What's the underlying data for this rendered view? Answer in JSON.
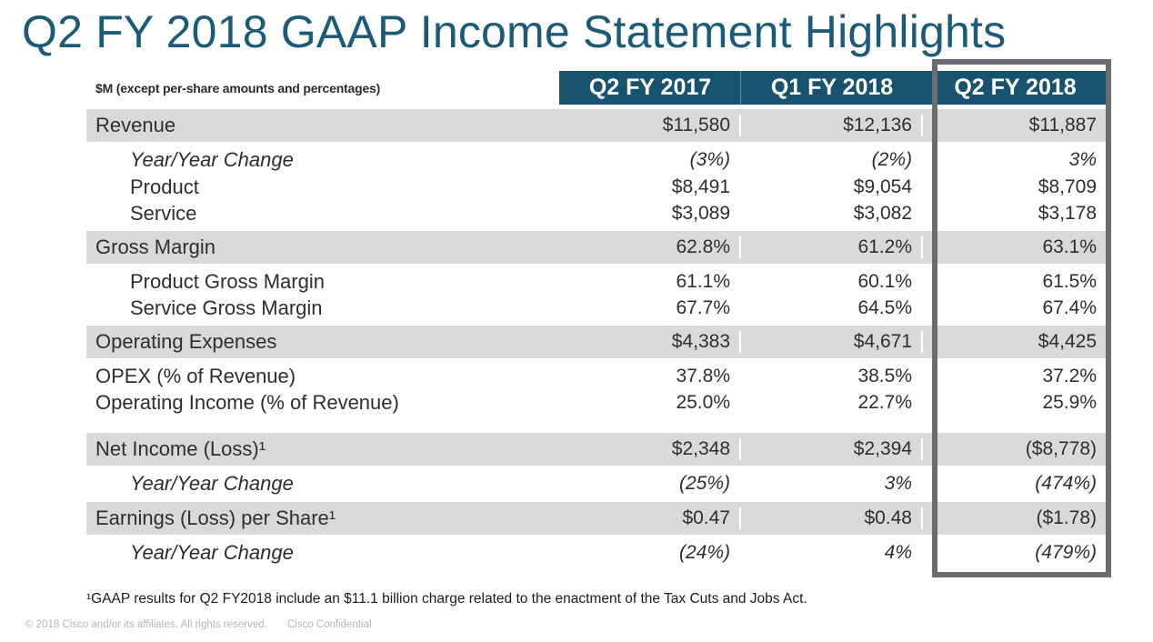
{
  "slide": {
    "title": "Q2 FY 2018 GAAP Income Statement Highlights",
    "footnote": "¹GAAP results for Q2 FY2018 include an $11.1 billion charge related to the enactment of the Tax Cuts and Jobs Act.",
    "copyright": "© 2018 Cisco and/or its affiliates. All rights reserved.",
    "confidential": "Cisco Confidential"
  },
  "colors": {
    "title_teal": "#1b5b78",
    "header_teal": "#17536f",
    "band_gray": "#d9d9d9",
    "highlight_border_gray": "#6b6d70",
    "body_text": "#2e2e2e",
    "copyright_gray": "#b3b5b7"
  },
  "table": {
    "unit_label": "$M (except per-share amounts and percentages)",
    "columns": [
      "Q2 FY 2017",
      "Q1 FY 2018",
      "Q2 FY 2018"
    ],
    "highlighted_column": "Q2 FY 2018",
    "rows": [
      {
        "label": "Revenue",
        "style": "major",
        "values": [
          "$11,580",
          "$12,136",
          "$11,887"
        ]
      },
      {
        "label": "Year/Year Change",
        "style": "yy",
        "values": [
          "(3%)",
          "(2%)",
          "3%"
        ]
      },
      {
        "label": "Product",
        "style": "indent",
        "values": [
          "$8,491",
          "$9,054",
          "$8,709"
        ]
      },
      {
        "label": "Service",
        "style": "indent",
        "values": [
          "$3,089",
          "$3,082",
          "$3,178"
        ]
      },
      {
        "label": "Gross Margin",
        "style": "major",
        "values": [
          "62.8%",
          "61.2%",
          "63.1%"
        ]
      },
      {
        "label": "Product Gross Margin",
        "style": "indent",
        "values": [
          "61.1%",
          "60.1%",
          "61.5%"
        ]
      },
      {
        "label": "Service Gross Margin",
        "style": "indent",
        "values": [
          "67.7%",
          "64.5%",
          "67.4%"
        ]
      },
      {
        "label": "Operating Expenses",
        "style": "major",
        "values": [
          "$4,383",
          "$4,671",
          "$4,425"
        ]
      },
      {
        "label": "OPEX (% of Revenue)",
        "style": "plain",
        "values": [
          "37.8%",
          "38.5%",
          "37.2%"
        ]
      },
      {
        "label": "Operating Income (% of Revenue)",
        "style": "plain",
        "values": [
          "25.0%",
          "22.7%",
          "25.9%"
        ]
      },
      {
        "label": "Net Income (Loss)¹",
        "style": "major",
        "values": [
          "$2,348",
          "$2,394",
          "($8,778)"
        ]
      },
      {
        "label": "Year/Year Change",
        "style": "yy",
        "values": [
          "(25%)",
          "3%",
          "(474%)"
        ]
      },
      {
        "label": "Earnings (Loss) per Share¹",
        "style": "major",
        "values": [
          "$0.47",
          "$0.48",
          "($1.78)"
        ]
      },
      {
        "label": "Year/Year Change",
        "style": "yy",
        "values": [
          "(24%)",
          "4%",
          "(479%)"
        ]
      }
    ]
  }
}
